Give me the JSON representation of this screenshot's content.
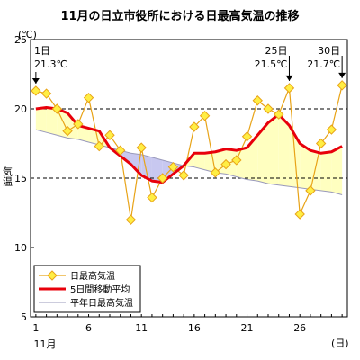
{
  "chart_data": {
    "type": "line",
    "title": "11月の日立市役所における日最高気温の推移",
    "ylabel": "気温",
    "yunit": "(℃)",
    "xunit": "(日)",
    "xlabel": "11月",
    "ylim": [
      5,
      25
    ],
    "xlim": [
      0.5,
      30.5
    ],
    "yticks": [
      5,
      10,
      15,
      20,
      25
    ],
    "xticks": [
      1,
      6,
      11,
      16,
      21,
      26
    ],
    "grid_y_dashed": [
      15,
      20
    ],
    "x": [
      1,
      2,
      3,
      4,
      5,
      6,
      7,
      8,
      9,
      10,
      11,
      12,
      13,
      14,
      15,
      16,
      17,
      18,
      19,
      20,
      21,
      22,
      23,
      24,
      25,
      26,
      27,
      28,
      29,
      30
    ],
    "series": [
      {
        "name": "日最高気温",
        "color": "#e8a317",
        "marker_color": "#ffee44",
        "values": [
          21.3,
          21.1,
          20.0,
          18.4,
          18.9,
          20.8,
          17.3,
          18.1,
          17.0,
          12.0,
          17.2,
          13.6,
          15.0,
          15.8,
          15.2,
          18.7,
          19.5,
          15.4,
          16.0,
          16.3,
          18.0,
          20.6,
          20.0,
          19.6,
          21.5,
          12.4,
          14.1,
          17.5,
          18.5,
          21.7
        ]
      },
      {
        "name": "5日間移動平均",
        "color": "#e8000b",
        "values": [
          20.0,
          20.1,
          20.0,
          19.7,
          18.8,
          18.6,
          18.4,
          17.2,
          16.6,
          16.0,
          15.2,
          14.8,
          14.7,
          15.3,
          15.9,
          16.8,
          16.8,
          16.9,
          17.1,
          17.0,
          17.2,
          18.1,
          19.0,
          19.6,
          18.8,
          17.5,
          17.0,
          16.8,
          16.9,
          17.3
        ]
      },
      {
        "name": "平年日最高気温",
        "color": "#9999bb",
        "values": [
          18.5,
          18.3,
          18.1,
          17.9,
          17.8,
          17.6,
          17.4,
          17.2,
          17.0,
          16.8,
          16.7,
          16.5,
          16.3,
          16.1,
          15.9,
          15.8,
          15.6,
          15.4,
          15.3,
          15.1,
          14.9,
          14.8,
          14.6,
          14.5,
          14.4,
          14.3,
          14.2,
          14.1,
          14.0,
          13.8
        ]
      }
    ],
    "fill_above_color": "#ffffc0",
    "fill_below_color": "#c8c8f0",
    "annotations": [
      {
        "day": 1,
        "label": "1日",
        "value_label": "21.3℃",
        "align": "start"
      },
      {
        "day": 25,
        "label": "25日",
        "value_label": "21.5℃",
        "align": "end"
      },
      {
        "day": 30,
        "label": "30日",
        "value_label": "21.7℃",
        "align": "end"
      }
    ],
    "legend_position": "bottom-left"
  }
}
